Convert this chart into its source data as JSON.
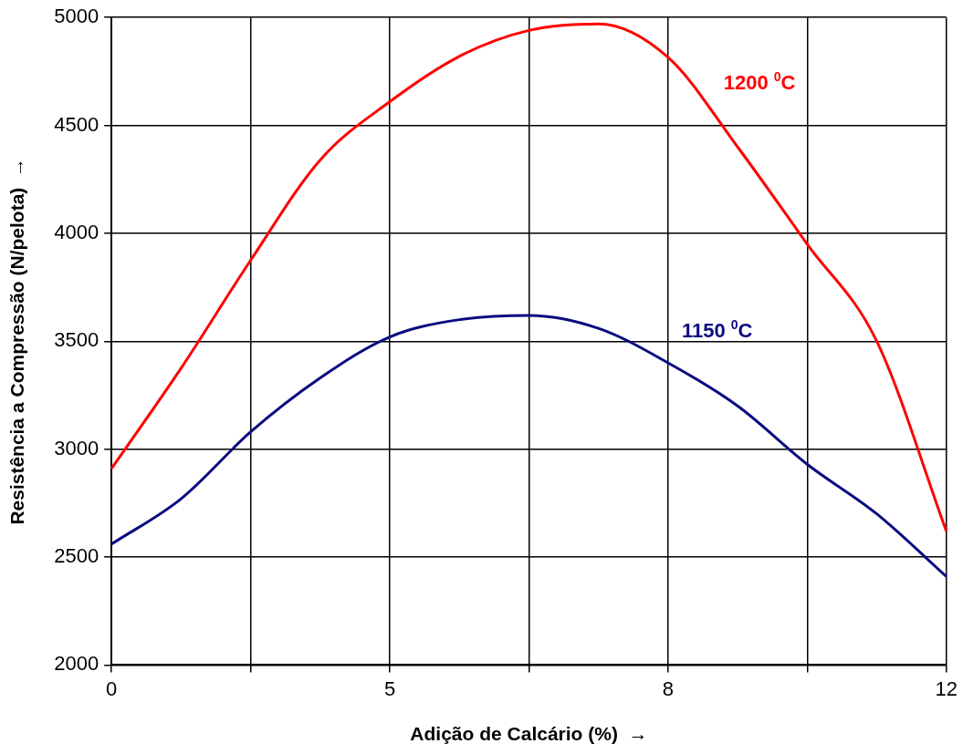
{
  "chart_data": {
    "type": "line",
    "xlabel": "Adição de Calcário (%)  →",
    "ylabel": "Resistência a Compressão (N/pelota)  →",
    "categories": [
      "0",
      null,
      null,
      null,
      "5",
      null,
      null,
      null,
      "8",
      null,
      null,
      null,
      "12"
    ],
    "ylim": [
      2000,
      5000
    ],
    "yticks": [
      2000,
      2500,
      3000,
      3500,
      4000,
      4500,
      5000
    ],
    "grid": true,
    "series": [
      {
        "name": "1200 $^{0}$C",
        "color": "#ff0000",
        "values": [
          2910,
          3375,
          3875,
          4340,
          4610,
          4820,
          4940,
          4970,
          4815,
          4400,
          3950,
          3500,
          2620
        ]
      },
      {
        "name": "1150 $^{0}$C",
        "color": "#0a0a80",
        "values": [
          2560,
          2770,
          3080,
          3330,
          3520,
          3600,
          3620,
          3560,
          3400,
          3200,
          2930,
          2700,
          2410
        ]
      }
    ]
  }
}
